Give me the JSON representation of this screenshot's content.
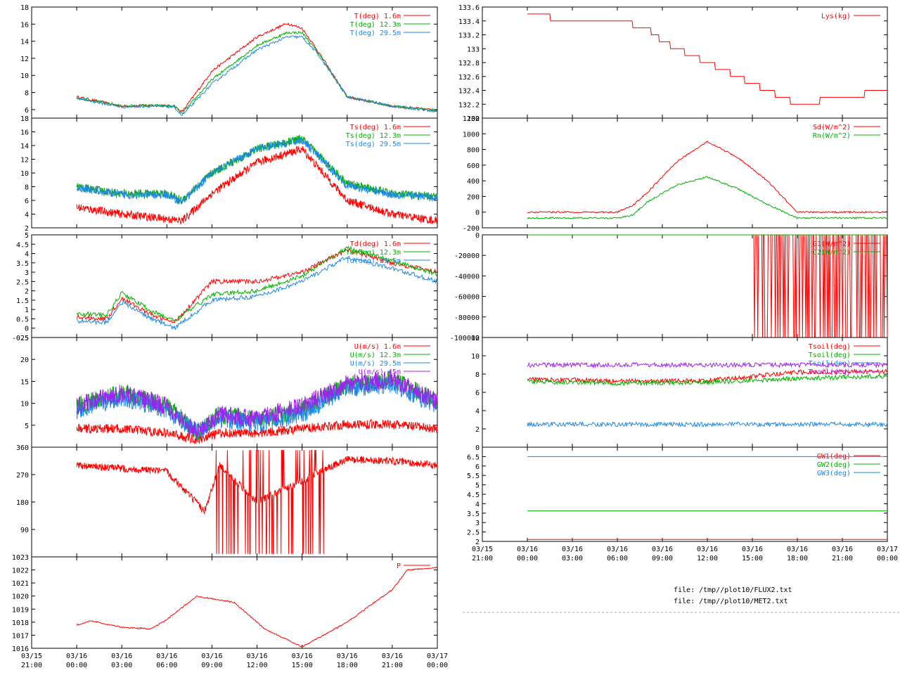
{
  "colors": {
    "red": "#ff0000",
    "green": "#00b000",
    "blue": "#1e88e5",
    "purple": "#a020f0",
    "axis": "#000000",
    "dash": "#aaaaaa"
  },
  "x_axis": {
    "left_labels": [
      {
        "date": "03/15",
        "time": "21:00"
      },
      {
        "date": "03/16",
        "time": "00:00"
      },
      {
        "date": "03/16",
        "time": "03:00"
      },
      {
        "date": "03/16",
        "time": "06:00"
      },
      {
        "date": "03/16",
        "time": "09:00"
      },
      {
        "date": "03/16",
        "time": "12:00"
      },
      {
        "date": "03/16",
        "time": "15:00"
      },
      {
        "date": "03/16",
        "time": "18:00"
      },
      {
        "date": "03/16",
        "time": "21:00"
      },
      {
        "date": "03/17",
        "time": "00:00"
      }
    ],
    "right_labels": [
      {
        "date": "03/15",
        "time": "21:00"
      },
      {
        "date": "03/16",
        "time": "00:00"
      },
      {
        "date": "03/16",
        "time": "03:00"
      },
      {
        "date": "03/16",
        "time": "06:00"
      },
      {
        "date": "03/16",
        "time": "09:00"
      },
      {
        "date": "03/16",
        "time": "12:00"
      },
      {
        "date": "03/16",
        "time": "15:00"
      },
      {
        "date": "03/16",
        "time": "18:00"
      },
      {
        "date": "03/16",
        "time": "21:00"
      },
      {
        "date": "03/17",
        "time": "00:00"
      }
    ],
    "range": [
      "03/15 21:00",
      "03/17 00:00"
    ]
  },
  "footer": {
    "file1": "file: /tmp//plot10/FLUX2.txt",
    "file2": "file: /tmp//plot10/MET2.txt"
  },
  "chart_data": [
    {
      "type": "line",
      "id": "T",
      "ylim": [
        5,
        18
      ],
      "yticks": [
        "6",
        "8",
        "10",
        "12",
        "14",
        "16",
        "18"
      ],
      "x": [
        "03/16 00:00",
        "03/16 03:00",
        "03/16 05:00",
        "03/16 06:30",
        "03/16 07:00",
        "03/16 09:00",
        "03/16 12:00",
        "03/16 14:00",
        "03/16 15:00",
        "03/16 16:00",
        "03/16 18:00",
        "03/16 21:00",
        "03/17 00:00"
      ],
      "series": [
        {
          "name": "T(deg)  1.6m",
          "color": "red",
          "values": [
            7.5,
            6.4,
            6.5,
            6.4,
            5.7,
            10.5,
            14.5,
            16.1,
            15.5,
            13,
            7.5,
            6.4,
            5.9
          ]
        },
        {
          "name": "T(deg) 12.3m",
          "color": "green",
          "values": [
            7.4,
            6.4,
            6.5,
            6.4,
            5.5,
            9.5,
            13.5,
            15,
            15,
            12.8,
            7.5,
            6.4,
            5.9
          ]
        },
        {
          "name": "T(deg) 29.5m",
          "color": "blue",
          "values": [
            7.3,
            6.3,
            6.4,
            6.3,
            5.3,
            9,
            13,
            14.5,
            14.5,
            12.6,
            7.5,
            6.4,
            5.8
          ]
        }
      ]
    },
    {
      "type": "line",
      "id": "Ts",
      "ylim": [
        2,
        18
      ],
      "yticks": [
        "2",
        "4",
        "6",
        "8",
        "10",
        "12",
        "14",
        "16",
        "18"
      ],
      "x": [
        "03/16 00:00",
        "03/16 03:00",
        "03/16 06:00",
        "03/16 07:00",
        "03/16 09:00",
        "03/16 12:00",
        "03/16 15:00",
        "03/16 18:00",
        "03/16 21:00",
        "03/17 00:00"
      ],
      "series": [
        {
          "name": "Ts(deg)  1.6m",
          "color": "red",
          "values": [
            5,
            4,
            3.3,
            3,
            7,
            11.5,
            13.5,
            6,
            4,
            3
          ]
        },
        {
          "name": "Ts(deg) 12.3m",
          "color": "green",
          "values": [
            8,
            7,
            7,
            6,
            10,
            13.5,
            15,
            8.5,
            7,
            6.5
          ]
        },
        {
          "name": "Ts(deg) 29.5m",
          "color": "blue",
          "values": [
            7.9,
            6.8,
            6.8,
            5.8,
            10,
            13.5,
            14.8,
            8.2,
            6.9,
            6.4
          ]
        }
      ]
    },
    {
      "type": "line",
      "id": "Td",
      "ylim": [
        -0.5,
        5
      ],
      "yticks": [
        "-0.5",
        "0",
        "0.5",
        "1",
        "1.5",
        "2",
        "2.5",
        "3",
        "3.5",
        "4",
        "4.5",
        "5"
      ],
      "x": [
        "03/16 00:00",
        "03/16 02:00",
        "03/16 03:00",
        "03/16 05:00",
        "03/16 06:30",
        "03/16 09:00",
        "03/16 12:00",
        "03/16 15:00",
        "03/16 18:00",
        "03/16 21:00",
        "03/17 00:00"
      ],
      "series": [
        {
          "name": "Td(deg)  1.6m",
          "color": "red",
          "values": [
            0.6,
            0.5,
            1.6,
            0.7,
            0.3,
            2.5,
            2.5,
            3,
            4.2,
            3.5,
            3
          ]
        },
        {
          "name": "Td(deg) 12.3m",
          "color": "green",
          "values": [
            0.8,
            0.7,
            1.9,
            0.9,
            0.4,
            1.8,
            2,
            2.8,
            4.3,
            3.6,
            2.9
          ]
        },
        {
          "name": "Td(deg) 29.5m",
          "color": "blue",
          "values": [
            0.4,
            0.3,
            1.4,
            0.5,
            0,
            1.5,
            1.7,
            2.5,
            3.8,
            3.2,
            2.5
          ]
        }
      ]
    },
    {
      "type": "line",
      "id": "U",
      "ylim": [
        0,
        25
      ],
      "yticks": [
        "5",
        "10",
        "15",
        "20",
        "25"
      ],
      "x": [
        "03/16 00:00",
        "03/16 03:00",
        "03/16 06:00",
        "03/16 08:00",
        "03/16 09:30",
        "03/16 12:00",
        "03/16 15:00",
        "03/16 18:00",
        "03/16 21:00",
        "03/17 00:00"
      ],
      "series": [
        {
          "name": "U(m/s)  1.6m",
          "color": "red",
          "values": [
            4,
            4,
            3,
            1.5,
            3,
            3,
            4,
            5,
            5,
            4
          ]
        },
        {
          "name": "U(m/s) 12.3m",
          "color": "green",
          "values": [
            9,
            12,
            9,
            3,
            7,
            6,
            8,
            14,
            15,
            10
          ]
        },
        {
          "name": "U(m/s) 29.5m",
          "color": "blue",
          "values": [
            8,
            11,
            8,
            3,
            6,
            5,
            7,
            13,
            14,
            9
          ]
        },
        {
          "name": "U(m/s) 45m",
          "color": "purple",
          "values": [
            9,
            12,
            9,
            3,
            7,
            6,
            9,
            14,
            15,
            10
          ]
        }
      ]
    },
    {
      "type": "line",
      "id": "WD",
      "ylim": [
        0,
        360
      ],
      "yticks": [
        "90",
        "180",
        "270",
        "360"
      ],
      "x": [
        "03/16 00:00",
        "03/16 03:00",
        "03/16 06:00",
        "03/16 08:30",
        "03/16 09:30",
        "03/16 12:00",
        "03/16 15:00",
        "03/16 18:00",
        "03/16 21:00",
        "03/17 00:00"
      ],
      "series": [
        {
          "name": "",
          "color": "red",
          "values": [
            300,
            290,
            280,
            150,
            300,
            180,
            250,
            320,
            315,
            300
          ]
        }
      ]
    },
    {
      "type": "line",
      "id": "P",
      "ylim": [
        1016,
        1023
      ],
      "yticks": [
        "1016",
        "1017",
        "1018",
        "1019",
        "1020",
        "1021",
        "1022",
        "1023"
      ],
      "x": [
        "03/16 00:00",
        "03/16 01:00",
        "03/16 03:00",
        "03/16 05:00",
        "03/16 06:00",
        "03/16 08:00",
        "03/16 10:30",
        "03/16 12:30",
        "03/16 15:00",
        "03/16 18:00",
        "03/16 21:00",
        "03/16 22:00",
        "03/17 00:00"
      ],
      "series": [
        {
          "name": "P",
          "color": "red",
          "values": [
            1017.8,
            1018.1,
            1017.6,
            1017.5,
            1018.2,
            1020,
            1019.5,
            1017.5,
            1016.1,
            1018,
            1020.5,
            1022,
            1022.2
          ]
        }
      ]
    },
    {
      "type": "line",
      "id": "Lys",
      "ylim": [
        132,
        133.6
      ],
      "yticks": [
        "132",
        "132.2",
        "132.4",
        "132.6",
        "132.8",
        "133",
        "133.2",
        "133.4",
        "133.6"
      ],
      "x": [
        "03/16 00:00",
        "03/16 03:00",
        "03/16 06:00",
        "03/16 08:00",
        "03/16 09:00",
        "03/16 12:00",
        "03/16 15:00",
        "03/16 18:00",
        "03/16 21:00",
        "03/17 00:00"
      ],
      "series": [
        {
          "name": "Lys(kg)",
          "color": "red",
          "values": [
            133.5,
            133.4,
            133.4,
            133.3,
            133.1,
            132.8,
            132.5,
            132.2,
            132.3,
            132.4
          ]
        }
      ]
    },
    {
      "type": "line",
      "id": "Rad",
      "ylim": [
        -200,
        1200
      ],
      "yticks": [
        "-200",
        "0",
        "200",
        "400",
        "600",
        "800",
        "1000",
        "1200"
      ],
      "x": [
        "03/16 00:00",
        "03/16 06:00",
        "03/16 07:00",
        "03/16 08:00",
        "03/16 10:00",
        "03/16 12:00",
        "03/16 14:00",
        "03/16 16:00",
        "03/16 18:00",
        "03/16 21:00",
        "03/17 00:00"
      ],
      "series": [
        {
          "name": "Sd(W/m^2)",
          "color": "red",
          "values": [
            0,
            0,
            80,
            250,
            650,
            900,
            700,
            400,
            0,
            0,
            0
          ]
        },
        {
          "name": "Rn(W/m^2)",
          "color": "green",
          "values": [
            -75,
            -75,
            -40,
            130,
            350,
            450,
            300,
            100,
            -75,
            -75,
            -75
          ]
        }
      ]
    },
    {
      "type": "line",
      "id": "G",
      "ylim": [
        -100000,
        0
      ],
      "yticks": [
        "-100000",
        "-80000",
        "-60000",
        "-40000",
        "-20000",
        "0"
      ],
      "x": [
        "03/16 00:00",
        "03/16 15:00",
        "03/16 15:01",
        "03/17 00:00"
      ],
      "series": [
        {
          "name": "G1(W/m^2)",
          "color": "red",
          "values": [
            0,
            0,
            -100000,
            0
          ]
        },
        {
          "name": "G2(W/m^2)",
          "color": "green",
          "values": [
            0,
            0,
            0,
            0
          ]
        }
      ]
    },
    {
      "type": "line",
      "id": "Tsoil",
      "ylim": [
        0,
        12
      ],
      "yticks": [
        "0",
        "2",
        "4",
        "6",
        "8",
        "10",
        "12"
      ],
      "x": [
        "03/16 00:00",
        "03/16 06:00",
        "03/16 12:00",
        "03/16 18:00",
        "03/17 00:00"
      ],
      "series": [
        {
          "name": "Tsoil(deg)",
          "color": "red",
          "values": [
            7.5,
            7.2,
            7.3,
            8.2,
            8.3
          ]
        },
        {
          "name": "Tsoil(deg)",
          "color": "green",
          "values": [
            7.2,
            7,
            7.1,
            7.5,
            7.8
          ]
        },
        {
          "name": "Tsoil(deg)",
          "color": "blue",
          "values": [
            2.5,
            2.5,
            2.5,
            2.5,
            2.5
          ]
        },
        {
          "name": "Tsoil(deg)",
          "color": "purple",
          "values": [
            9,
            9,
            9,
            9,
            9
          ]
        }
      ]
    },
    {
      "type": "line",
      "id": "GW",
      "ylim": [
        2,
        7
      ],
      "yticks": [
        "2",
        "2.5",
        "3",
        "3.5",
        "4",
        "4.5",
        "5",
        "5.5",
        "6",
        "6.5"
      ],
      "x": [
        "03/16 00:00",
        "03/17 00:00"
      ],
      "series": [
        {
          "name": "GW1(deg)",
          "color": "red",
          "values": [
            2.1,
            2.1
          ]
        },
        {
          "name": "GW2(deg)",
          "color": "green",
          "values": [
            3.62,
            3.62
          ]
        },
        {
          "name": "GW3(deg)",
          "color": "blue",
          "values": [
            6.5,
            6.5
          ]
        }
      ]
    }
  ]
}
